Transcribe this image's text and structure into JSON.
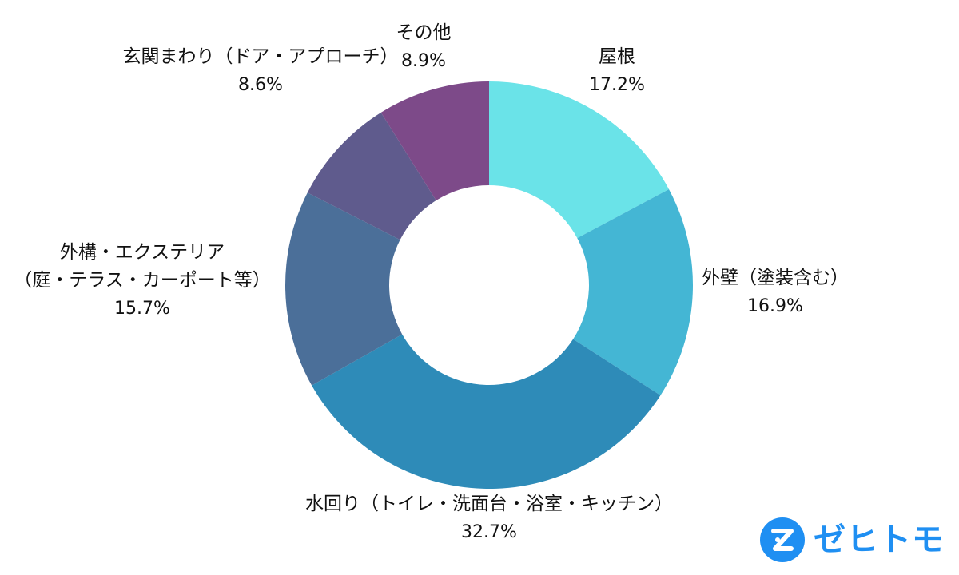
{
  "chart_data": {
    "type": "pie",
    "subtype": "donut",
    "categories": [
      "屋根",
      "外壁（塗装含む）",
      "水回り（トイレ・洗面台・浴室・キッチン）",
      "外構・エクステリア（庭・テラス・カーポート等）",
      "玄関まわり（ドア・アプローチ）",
      "その他"
    ],
    "values": [
      17.2,
      16.9,
      32.7,
      15.7,
      8.6,
      8.9
    ],
    "value_labels": [
      "17.2%",
      "16.9%",
      "32.7%",
      "15.7%",
      "8.6%",
      "8.9%"
    ],
    "label_lines": [
      [
        "屋根"
      ],
      [
        "外壁（塗装含む）"
      ],
      [
        "水回り（トイレ・洗面台・浴室・キッチン）"
      ],
      [
        "外構・エクステリア",
        "（庭・テラス・カーポート等）"
      ],
      [
        "玄関まわり（ドア・アプローチ）"
      ],
      [
        "その他"
      ]
    ],
    "colors": [
      "#6ae3e8",
      "#44b6d4",
      "#2e8bb8",
      "#4b6f99",
      "#5f5b8d",
      "#7d4a89"
    ],
    "start_angle_deg": 0,
    "direction": "clockwise",
    "legend": "none"
  },
  "brand": {
    "name": "ゼヒトモ",
    "color": "#1f8ff2",
    "icon": "brand-z-icon"
  }
}
